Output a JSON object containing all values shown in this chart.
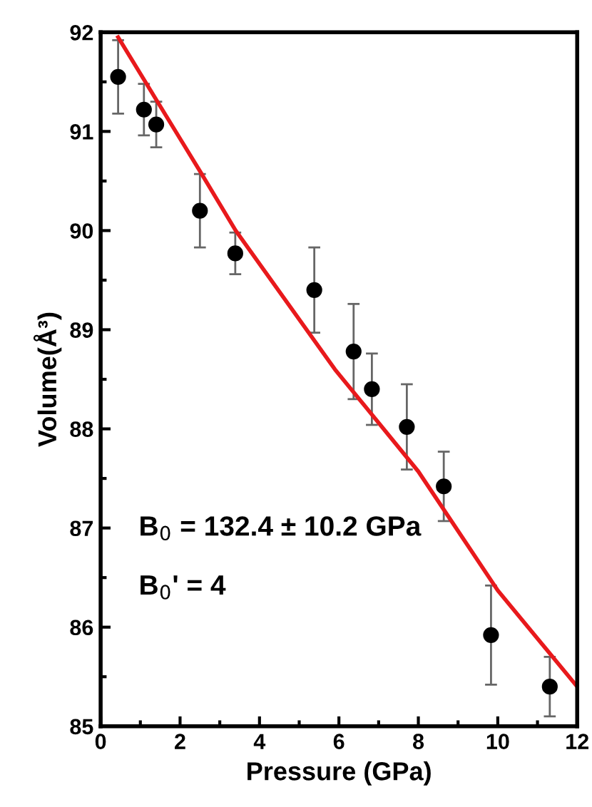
{
  "chart_data": {
    "type": "scatter",
    "xlabel": "Pressure (GPa)",
    "ylabel": "Volume(Å³)",
    "xlim": [
      0,
      12
    ],
    "ylim": [
      85,
      92
    ],
    "xticks": [
      0,
      2,
      4,
      6,
      8,
      10,
      12
    ],
    "yticks": [
      85,
      86,
      87,
      88,
      89,
      90,
      91,
      92
    ],
    "grid": false,
    "legend": false,
    "marker": "circle",
    "annotations": [
      "B$_{0}$ = 132.4 ± 10.2 GPa",
      "B$_{0}$' = 4"
    ],
    "series": [
      {
        "color": "#000000",
        "x": [
          0.44,
          1.09,
          1.4,
          2.5,
          3.39,
          5.38,
          6.37,
          6.83,
          7.71,
          8.64,
          9.83,
          11.31
        ],
        "values": [
          91.55,
          91.22,
          91.07,
          90.2,
          89.77,
          89.4,
          88.78,
          88.4,
          88.02,
          87.42,
          85.92,
          85.4
        ],
        "errors": [
          0.37,
          0.26,
          0.23,
          0.37,
          0.21,
          0.43,
          0.48,
          0.36,
          0.43,
          0.35,
          0.5,
          0.3
        ]
      },
      {
        "type": "line",
        "color": "#e8191c",
        "marker": "none",
        "line_style": "solid",
        "x": [
          0.44,
          1.4,
          2.5,
          3.4,
          5.9,
          8,
          10,
          12
        ],
        "values": [
          91.95,
          91.32,
          90.6,
          90.0,
          88.6,
          87.57,
          86.37,
          85.4
        ]
      }
    ]
  }
}
